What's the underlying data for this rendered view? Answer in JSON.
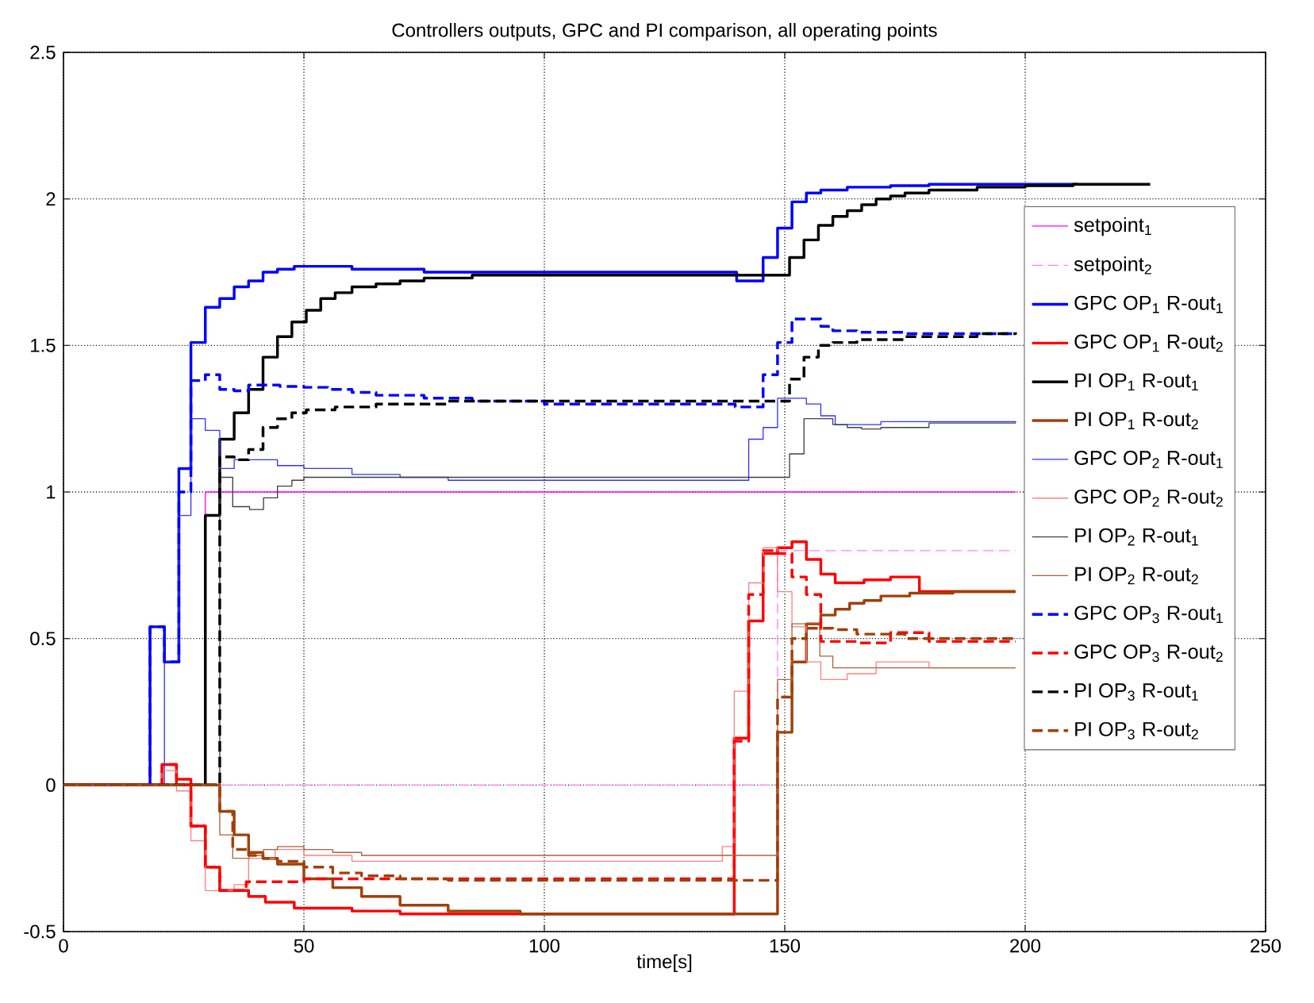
{
  "chart_data": {
    "type": "step",
    "title": "Controllers outputs, GPC and PI comparison, all operating points",
    "xlabel": "time[s]",
    "xlim": [
      0,
      250
    ],
    "ylim": [
      -0.5,
      2.5
    ],
    "xticks": [
      0,
      50,
      100,
      150,
      200,
      250
    ],
    "yticks": [
      -0.5,
      0,
      0.5,
      1,
      1.5,
      2,
      2.5
    ],
    "grid": true,
    "legend": "right",
    "series": [
      {
        "name": "setpoint$_{1}$",
        "color": "#ff00ff",
        "line_style": "solid",
        "x": [
          0,
          29.5,
          198
        ],
        "values": [
          0,
          1,
          1
        ]
      },
      {
        "name": "setpoint$_{2}$",
        "color": "#ff80ff",
        "line_style": "dashed",
        "x": [
          0,
          148.5,
          198
        ],
        "values": [
          0,
          0.8,
          0.8
        ]
      },
      {
        "name": "GPC OP$_{1}$ R-out$_{1}$",
        "color": "#0000ff",
        "line_style": "solid",
        "x": [
          0,
          18,
          21,
          24,
          26.5,
          29.5,
          32.5,
          35.5,
          38.5,
          41.5,
          44.5,
          48,
          60,
          75,
          140,
          143,
          145.5,
          148.5,
          151.5,
          154.5,
          157.5,
          163,
          172,
          180,
          211
        ],
        "values": [
          0,
          0.54,
          0.42,
          1.08,
          1.51,
          1.63,
          1.66,
          1.7,
          1.72,
          1.75,
          1.76,
          1.77,
          1.76,
          1.75,
          1.72,
          1.72,
          1.8,
          1.9,
          1.99,
          2.02,
          2.03,
          2.04,
          2.045,
          2.05,
          2.05
        ]
      },
      {
        "name": "GPC OP$_{1}$ R-out$_{2}$",
        "color": "#ff0000",
        "line_style": "solid",
        "x": [
          0,
          20.5,
          23.5,
          26.5,
          29.5,
          32.5,
          38.5,
          42,
          48,
          60,
          70,
          139.5,
          142.5,
          145.5,
          148.5,
          151.5,
          154.5,
          157.5,
          160.5,
          166.5,
          172,
          178,
          198
        ],
        "values": [
          0,
          0.07,
          0.02,
          -0.14,
          -0.28,
          -0.36,
          -0.38,
          -0.4,
          -0.42,
          -0.43,
          -0.44,
          0.16,
          0.56,
          0.79,
          0.81,
          0.83,
          0.77,
          0.72,
          0.69,
          0.7,
          0.71,
          0.66,
          0.66
        ]
      },
      {
        "name": "PI OP$_{1}$ R-out$_{1}$",
        "color": "#000000",
        "line_style": "solid",
        "x": [
          0,
          29.5,
          32.5,
          35.5,
          38.5,
          41.5,
          44.5,
          47.5,
          50.5,
          53.5,
          56.5,
          60,
          65,
          70,
          75,
          85,
          151,
          154,
          157,
          160,
          163,
          166,
          169,
          172,
          175,
          180,
          190,
          200,
          210,
          226
        ],
        "values": [
          0,
          0.92,
          1.18,
          1.27,
          1.35,
          1.46,
          1.53,
          1.58,
          1.62,
          1.66,
          1.68,
          1.7,
          1.71,
          1.72,
          1.73,
          1.74,
          1.8,
          1.86,
          1.91,
          1.94,
          1.96,
          1.98,
          2.0,
          2.01,
          2.02,
          2.03,
          2.04,
          2.045,
          2.05,
          2.05
        ]
      },
      {
        "name": "PI OP$_{1}$ R-out$_{2}$",
        "color": "#a0400a",
        "line_style": "solid",
        "x": [
          0,
          32.5,
          35.5,
          38.5,
          41.5,
          44.5,
          50,
          56,
          62,
          70,
          80,
          95,
          148.5,
          151.5,
          154.5,
          157.5,
          160.5,
          163.5,
          166.5,
          170,
          176,
          185,
          198
        ],
        "values": [
          0,
          -0.09,
          -0.17,
          -0.23,
          -0.25,
          -0.27,
          -0.32,
          -0.35,
          -0.38,
          -0.41,
          -0.43,
          -0.44,
          0.18,
          0.42,
          0.55,
          0.58,
          0.6,
          0.62,
          0.63,
          0.645,
          0.655,
          0.66,
          0.66
        ]
      },
      {
        "name": "GPC OP$_{2}$ R-out$_{1}$",
        "color": "#3333ff",
        "line_style": "solid",
        "x": [
          0,
          21,
          24,
          26.5,
          29.5,
          32.5,
          35.5,
          44.5,
          50,
          60,
          70,
          80,
          142.5,
          145.5,
          148.5,
          151.5,
          154.5,
          157.5,
          160.5,
          170,
          198
        ],
        "values": [
          0,
          0.42,
          0.92,
          1.25,
          1.21,
          1.08,
          1.11,
          1.09,
          1.08,
          1.06,
          1.05,
          1.04,
          1.18,
          1.22,
          1.32,
          1.32,
          1.3,
          1.26,
          1.23,
          1.24,
          1.235
        ]
      },
      {
        "name": "GPC OP$_{2}$ R-out$_{2}$",
        "color": "#ff8080",
        "line_style": "solid",
        "x": [
          0,
          20.5,
          23.5,
          26.5,
          29.5,
          35.5,
          38.5,
          44,
          50,
          60,
          137,
          139.5,
          142.5,
          145.5,
          148.5,
          151.5,
          154.5,
          157.5,
          163,
          169,
          180,
          198
        ],
        "values": [
          0,
          0.05,
          -0.02,
          -0.19,
          -0.36,
          -0.34,
          -0.25,
          -0.22,
          -0.24,
          -0.26,
          -0.21,
          0.32,
          0.69,
          0.81,
          0.66,
          0.54,
          0.42,
          0.36,
          0.38,
          0.42,
          0.4,
          0.4
        ]
      },
      {
        "name": "PI OP$_{2}$ R-out$_{1}$",
        "color": "#404040",
        "line_style": "solid",
        "x": [
          0,
          32.5,
          35.2,
          38.7,
          41.6,
          44.5,
          47.5,
          50,
          53.5,
          151,
          154,
          157,
          160,
          163,
          166,
          170,
          180,
          198
        ],
        "values": [
          0,
          1.05,
          0.95,
          0.94,
          0.98,
          1.02,
          1.04,
          1.05,
          1.05,
          1.13,
          1.25,
          1.25,
          1.23,
          1.22,
          1.215,
          1.22,
          1.235,
          1.235
        ]
      },
      {
        "name": "PI OP$_{2}$ R-out$_{2}$",
        "color": "#b0603a",
        "line_style": "solid",
        "x": [
          0,
          32.5,
          35.2,
          38.6,
          41.6,
          44.5,
          50,
          56,
          62,
          148.5,
          151.5,
          157.3,
          160,
          198
        ],
        "values": [
          0,
          -0.17,
          -0.25,
          -0.24,
          -0.22,
          -0.21,
          -0.22,
          -0.23,
          -0.24,
          0.36,
          0.55,
          0.44,
          0.4,
          0.4
        ]
      },
      {
        "name": "GPC OP$_{3}$ R-out$_{1}$",
        "color": "#0000ff",
        "line_style": "dashed",
        "x": [
          0,
          18,
          21,
          24,
          26.5,
          29.5,
          32.5,
          35.5,
          38.5,
          45,
          50,
          55,
          60,
          65,
          75,
          85,
          100,
          139.7,
          145.5,
          148.5,
          151.5,
          154.5,
          157.5,
          160,
          165,
          175,
          198
        ],
        "values": [
          0,
          0.54,
          0.42,
          1.0,
          1.38,
          1.4,
          1.35,
          1.345,
          1.365,
          1.36,
          1.357,
          1.35,
          1.34,
          1.33,
          1.32,
          1.31,
          1.3,
          1.29,
          1.4,
          1.51,
          1.59,
          1.59,
          1.565,
          1.55,
          1.545,
          1.54,
          1.54
        ]
      },
      {
        "name": "GPC OP$_{3}$ R-out$_{2}$",
        "color": "#ff0000",
        "line_style": "dashed",
        "x": [
          0,
          20.5,
          23.5,
          26.5,
          29.5,
          32.5,
          38,
          50,
          60,
          139.5,
          142.5,
          145.5,
          148.5,
          151.5,
          154.5,
          157.5,
          165,
          172,
          180,
          198
        ],
        "values": [
          0,
          0.07,
          0,
          -0.14,
          -0.28,
          -0.36,
          -0.33,
          -0.32,
          -0.32,
          0.15,
          0.65,
          0.8,
          0.79,
          0.71,
          0.65,
          0.49,
          0.485,
          0.52,
          0.49,
          0.49
        ]
      },
      {
        "name": "PI OP$_{3}$ R-out$_{1}$",
        "color": "#000000",
        "line_style": "dashed",
        "x": [
          0,
          32.5,
          35.5,
          38.5,
          41.5,
          44.5,
          47.5,
          50.5,
          53.5,
          56.5,
          65,
          80,
          151,
          154,
          157,
          160,
          165,
          175,
          190,
          198
        ],
        "values": [
          0,
          1.12,
          1.11,
          1.145,
          1.22,
          1.25,
          1.27,
          1.28,
          1.28,
          1.29,
          1.3,
          1.31,
          1.385,
          1.46,
          1.5,
          1.51,
          1.52,
          1.53,
          1.54,
          1.545
        ]
      },
      {
        "name": "PI OP$_{3}$ R-out$_{2}$",
        "color": "#a0400a",
        "line_style": "dashed",
        "x": [
          0,
          32.5,
          35.2,
          38.5,
          41.5,
          44.5,
          50,
          56,
          62,
          70,
          80,
          148.5,
          151.5,
          154.5,
          160,
          165,
          175,
          198
        ],
        "values": [
          0,
          -0.09,
          -0.22,
          -0.24,
          -0.25,
          -0.26,
          -0.28,
          -0.3,
          -0.31,
          -0.32,
          -0.325,
          0.3,
          0.5,
          0.535,
          0.53,
          0.515,
          0.5,
          0.5
        ]
      }
    ]
  }
}
